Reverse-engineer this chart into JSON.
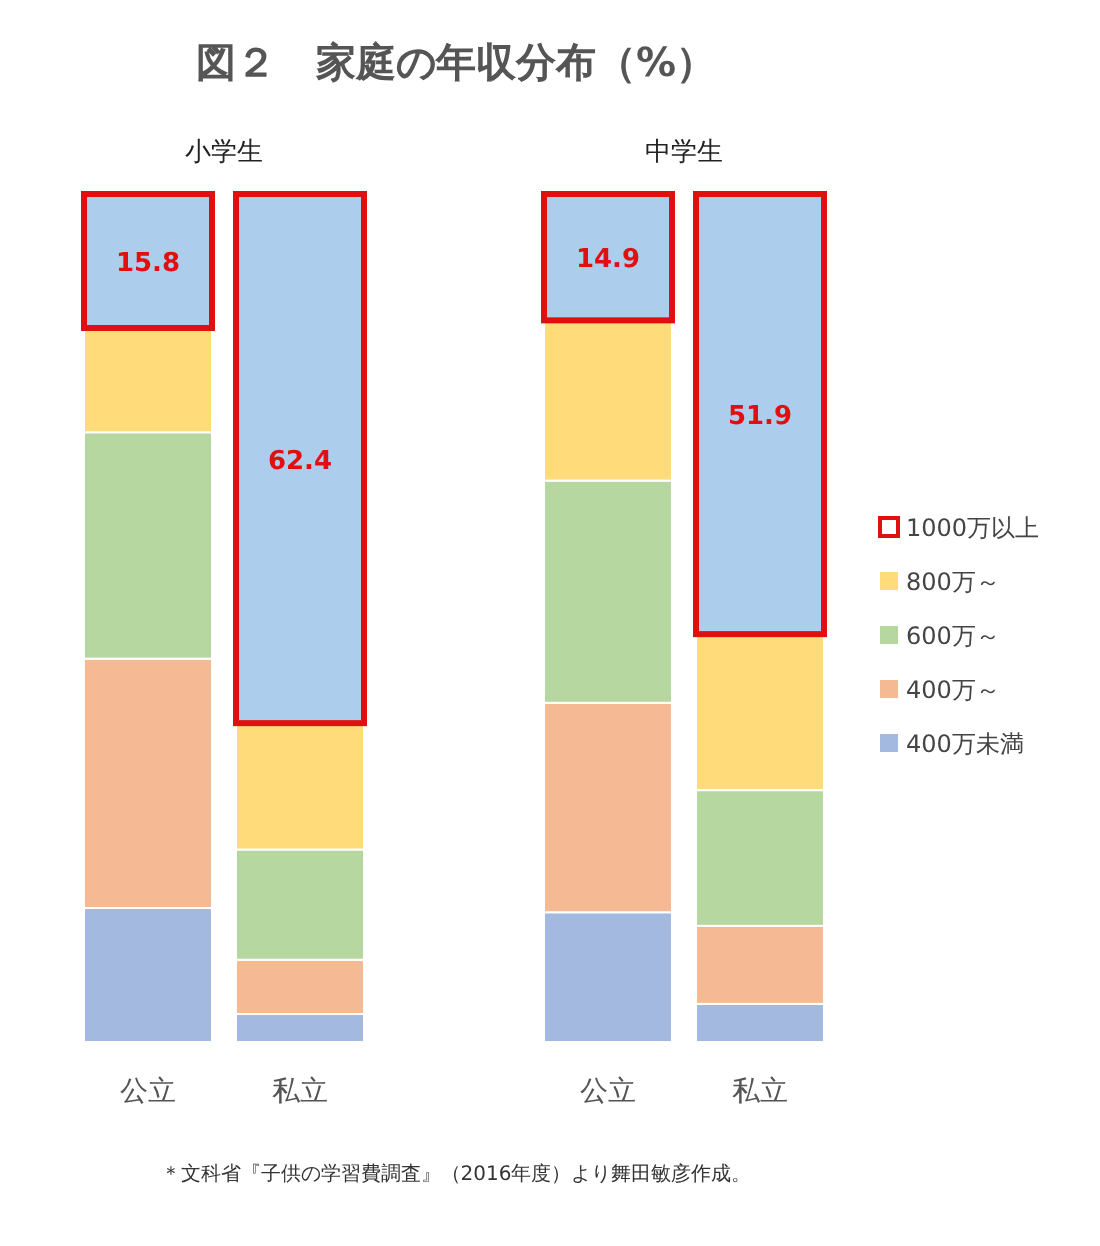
{
  "chart_data": [
    {
      "type": "bar",
      "stacked": true,
      "title": "図２　家庭の年収分布（%）",
      "subtitle": "小学生",
      "categories": [
        "公立",
        "私立"
      ],
      "ylim": [
        0,
        100
      ],
      "tick_labels": "x",
      "legend": false,
      "series": [
        {
          "color": "#a4b9e0",
          "values": [
            15.8,
            3.3
          ]
        },
        {
          "color": "#f5b994",
          "values": [
            29.4,
            6.4
          ]
        },
        {
          "color": "#b7d7a0",
          "values": [
            26.7,
            13.0
          ]
        },
        {
          "color": "#ffdb79",
          "values": [
            12.3,
            14.9
          ]
        },
        {
          "color": "#adcdec",
          "values": [
            15.8,
            62.4
          ],
          "value_labels": [
            "15.8",
            "62.4"
          ]
        }
      ]
    },
    {
      "type": "bar",
      "stacked": true,
      "subtitle": "中学生",
      "categories": [
        "公立",
        "私立"
      ],
      "ylim": [
        0,
        100
      ],
      "tick_labels": "x",
      "legend": "right",
      "annotations": [
        "＊文科省『子供の学習費調査』（2016年度）より舞田敏彦作成。"
      ],
      "series": [
        {
          "name": "400万未満",
          "color": "#a4b9e0",
          "values": [
            15.3,
            4.5
          ]
        },
        {
          "name": "400万～",
          "color": "#f5b994",
          "values": [
            24.7,
            9.2
          ]
        },
        {
          "name": "600万～",
          "color": "#b7d7a0",
          "values": [
            26.2,
            16.0
          ]
        },
        {
          "name": "800万～",
          "color": "#ffdb79",
          "values": [
            18.9,
            18.4
          ]
        },
        {
          "name": "1000万以上",
          "color": "#adcdec",
          "values": [
            14.9,
            51.9
          ],
          "value_labels": [
            "14.9",
            "51.9"
          ]
        }
      ]
    }
  ]
}
